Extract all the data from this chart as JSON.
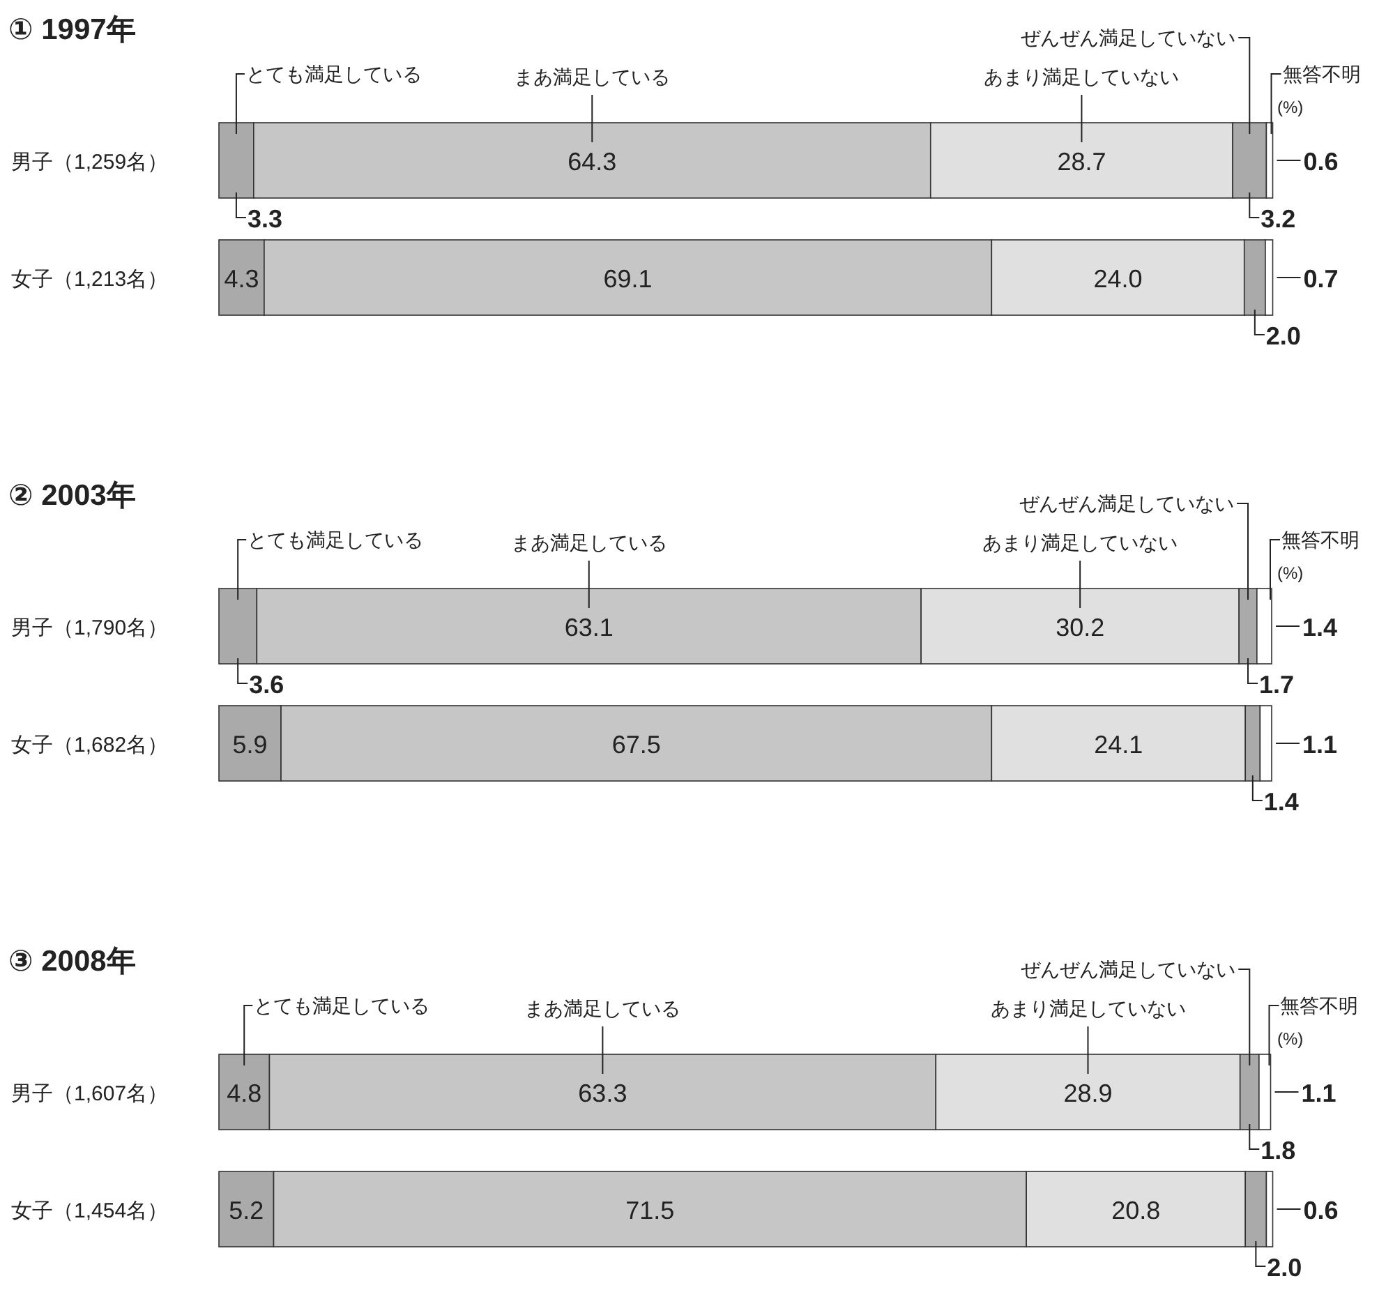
{
  "chart_data": [
    {
      "type": "bar",
      "orientation": "horizontal",
      "stacked": true,
      "title": "① 1997年",
      "annotations": [
        "(%)"
      ],
      "categories": [
        "男子（1,259名）",
        "女子（1,213名）"
      ],
      "series": [
        {
          "name": "とても満足している",
          "color": "#aaaaaa",
          "values": [
            3.3,
            4.3
          ],
          "value_labels": [
            "3.3",
            "4.3"
          ]
        },
        {
          "name": "まあ満足している",
          "color": "#c6c6c6",
          "values": [
            64.3,
            69.1
          ],
          "value_labels": [
            "64.3",
            "69.1"
          ]
        },
        {
          "name": "あまり満足していない",
          "color": "#e0e0e0",
          "values": [
            28.7,
            24.0
          ],
          "value_labels": [
            "28.7",
            "24.0"
          ]
        },
        {
          "name": "ぜんぜん満足していない",
          "color": "#aaaaaa",
          "values": [
            3.2,
            2.0
          ],
          "value_labels": [
            "3.2",
            "2.0"
          ]
        },
        {
          "name": "無答不明",
          "color": "#ffffff",
          "values": [
            0.6,
            0.7
          ],
          "value_labels": [
            "0.6",
            "0.7"
          ]
        }
      ]
    },
    {
      "type": "bar",
      "orientation": "horizontal",
      "stacked": true,
      "title": "② 2003年",
      "annotations": [
        "(%)"
      ],
      "categories": [
        "男子（1,790名）",
        "女子（1,682名）"
      ],
      "series": [
        {
          "name": "とても満足している",
          "color": "#aaaaaa",
          "values": [
            3.6,
            5.9
          ],
          "value_labels": [
            "3.6",
            "5.9"
          ]
        },
        {
          "name": "まあ満足している",
          "color": "#c6c6c6",
          "values": [
            63.1,
            67.5
          ],
          "value_labels": [
            "63.1",
            "67.5"
          ]
        },
        {
          "name": "あまり満足していない",
          "color": "#e0e0e0",
          "values": [
            30.2,
            24.1
          ],
          "value_labels": [
            "30.2",
            "24.1"
          ]
        },
        {
          "name": "ぜんぜん満足していない",
          "color": "#aaaaaa",
          "values": [
            1.7,
            1.4
          ],
          "value_labels": [
            "1.7",
            "1.4"
          ]
        },
        {
          "name": "無答不明",
          "color": "#ffffff",
          "values": [
            1.4,
            1.1
          ],
          "value_labels": [
            "1.4",
            "1.1"
          ]
        }
      ]
    },
    {
      "type": "bar",
      "orientation": "horizontal",
      "stacked": true,
      "title": "③ 2008年",
      "annotations": [
        "(%)"
      ],
      "categories": [
        "男子（1,607名）",
        "女子（1,454名）"
      ],
      "series": [
        {
          "name": "とても満足している",
          "color": "#aaaaaa",
          "values": [
            4.8,
            5.2
          ],
          "value_labels": [
            "4.8",
            "5.2"
          ]
        },
        {
          "name": "まあ満足している",
          "color": "#c6c6c6",
          "values": [
            63.3,
            71.5
          ],
          "value_labels": [
            "63.3",
            "71.5"
          ]
        },
        {
          "name": "あまり満足していない",
          "color": "#e0e0e0",
          "values": [
            28.9,
            20.8
          ],
          "value_labels": [
            "28.9",
            "20.8"
          ]
        },
        {
          "name": "ぜんぜん満足していない",
          "color": "#aaaaaa",
          "values": [
            1.8,
            2.0
          ],
          "value_labels": [
            "1.8",
            "2.0"
          ]
        },
        {
          "name": "無答不明",
          "color": "#ffffff",
          "values": [
            1.1,
            0.6
          ],
          "value_labels": [
            "1.1",
            "0.6"
          ]
        }
      ]
    }
  ]
}
